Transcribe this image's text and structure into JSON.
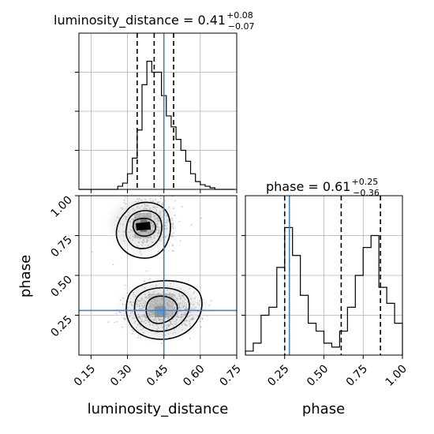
{
  "chart_data": {
    "type": "corner",
    "parameters": [
      "luminosity_distance",
      "phase"
    ],
    "truths": {
      "luminosity_distance": 0.45,
      "phase": 0.28
    },
    "axes": {
      "luminosity_distance": {
        "xlabel": "luminosity_distance",
        "xlim": [
          0.1,
          0.75
        ],
        "ticks": [
          0.15,
          0.3,
          0.45,
          0.6,
          0.75
        ],
        "tick_labels": [
          "0.15",
          "0.30",
          "0.45",
          "0.60",
          "0.75"
        ]
      },
      "phase": {
        "xlabel": "phase",
        "xlim": [
          0.0,
          1.0
        ],
        "ticks": [
          0.25,
          0.5,
          0.75,
          1.0
        ],
        "tick_labels": [
          "0.25",
          "0.50",
          "0.75",
          "1.00"
        ],
        "ylabel": "phase",
        "ylim": [
          0.0,
          1.0
        ]
      }
    },
    "marginals": [
      {
        "parameter": "luminosity_distance",
        "title": {
          "text": "luminosity_distance = 0.41",
          "plus": "+0.08",
          "minus": "−0.07"
        },
        "quantiles": [
          0.34,
          0.41,
          0.49
        ],
        "bin_edges": [
          0.1,
          0.12,
          0.14,
          0.16,
          0.18,
          0.2,
          0.22,
          0.24,
          0.26,
          0.28,
          0.3,
          0.32,
          0.34,
          0.36,
          0.38,
          0.4,
          0.42,
          0.44,
          0.46,
          0.48,
          0.5,
          0.52,
          0.54,
          0.56,
          0.58,
          0.6,
          0.62,
          0.64,
          0.66,
          0.68,
          0.7,
          0.72,
          0.74
        ],
        "counts": [
          0,
          0,
          0,
          0,
          0,
          0,
          0,
          0,
          2,
          4,
          10,
          20,
          38,
          67,
          82,
          75,
          75,
          60,
          47,
          40,
          32,
          25,
          18,
          10,
          5,
          3,
          2,
          1,
          0,
          0,
          0,
          0
        ],
        "ylim": [
          0,
          100
        ],
        "yticks": [
          25,
          50,
          75
        ]
      },
      {
        "parameter": "phase",
        "title": {
          "text": "phase = 0.61",
          "plus": "+0.25",
          "minus": "−0.36"
        },
        "quantiles": [
          0.25,
          0.61,
          0.86
        ],
        "bin_edges": [
          0.0,
          0.05,
          0.1,
          0.15,
          0.2,
          0.25,
          0.3,
          0.35,
          0.4,
          0.45,
          0.5,
          0.55,
          0.6,
          0.65,
          0.7,
          0.75,
          0.8,
          0.85,
          0.9,
          0.95,
          1.0
        ],
        "counts": [
          1,
          3,
          10,
          12,
          22,
          32,
          25,
          15,
          8,
          6,
          3,
          2,
          6,
          12,
          20,
          27,
          30,
          17,
          13,
          8
        ],
        "ylim": [
          0,
          40
        ],
        "yticks": [
          10,
          20,
          30
        ]
      }
    ],
    "joint": {
      "x": "luminosity_distance",
      "y": "phase",
      "type": "2d-density",
      "modes": [
        {
          "x": 0.39,
          "y": 0.83
        },
        {
          "x": 0.44,
          "y": 0.28
        }
      ],
      "contour_levels": 4
    }
  }
}
